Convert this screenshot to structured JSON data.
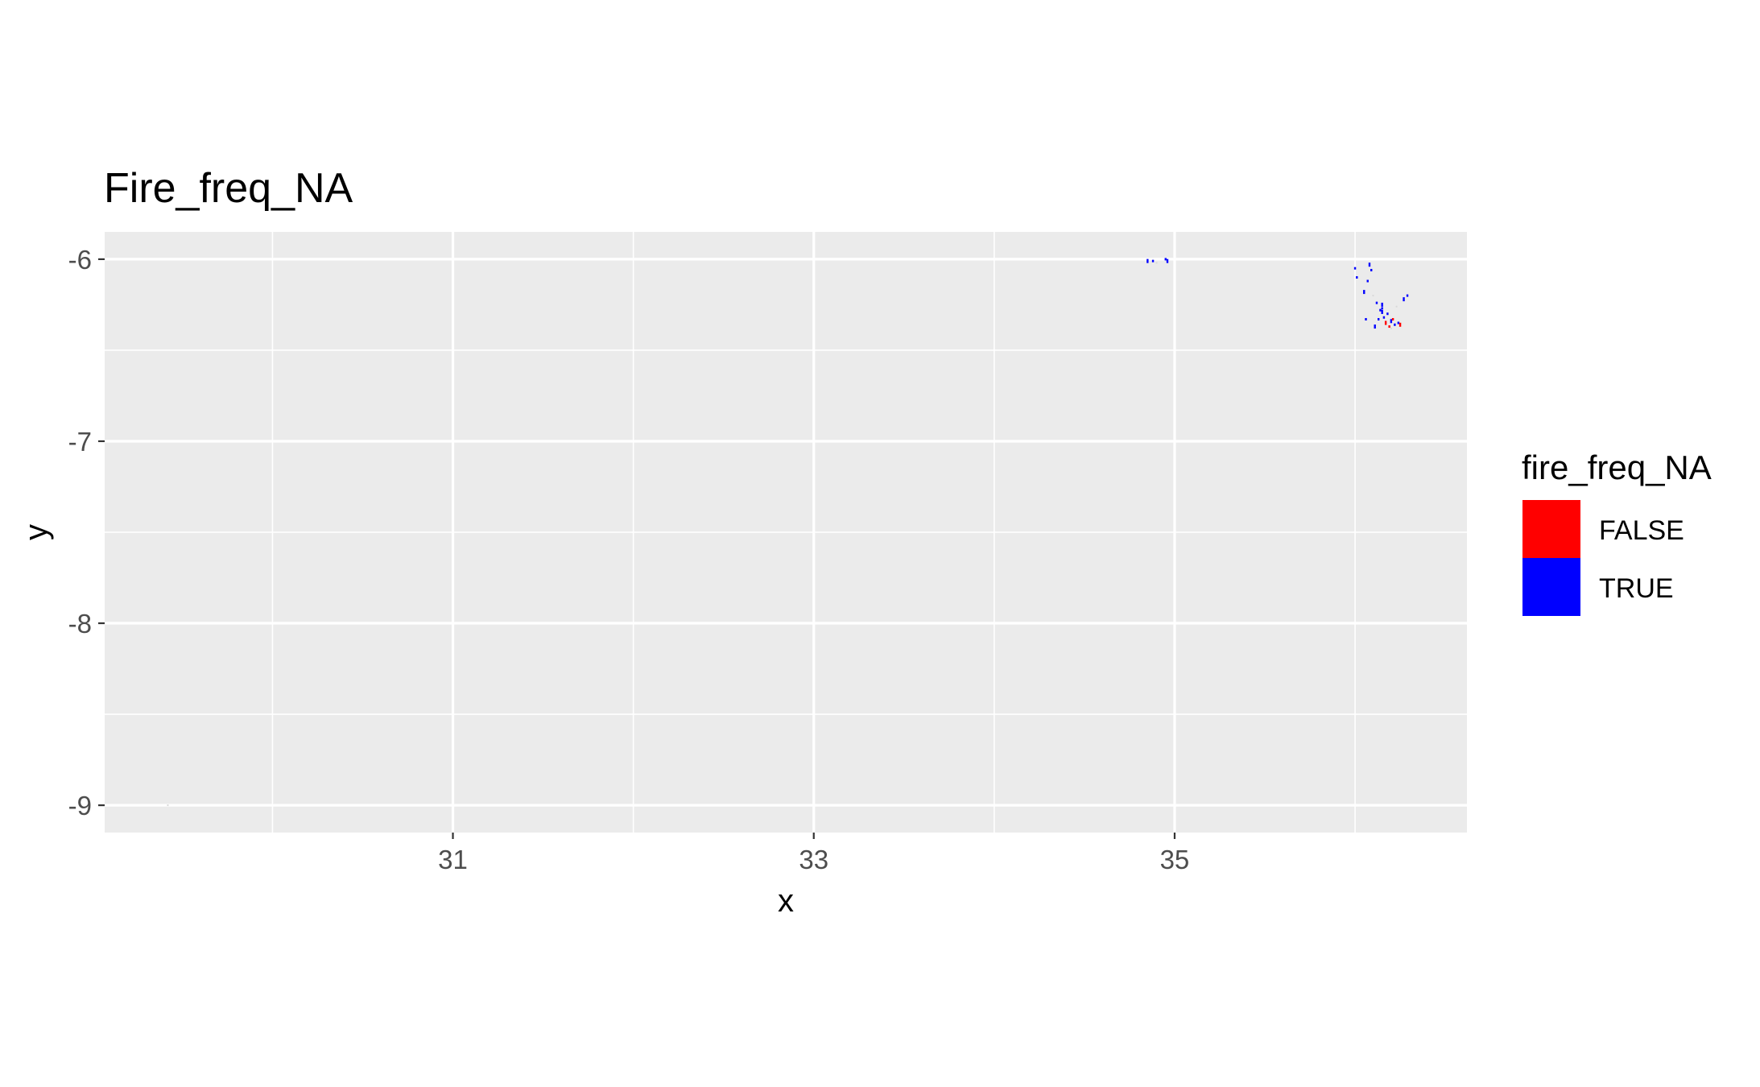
{
  "chart_data": {
    "type": "heatmap",
    "title": "Fire_freq_NA",
    "xlabel": "x",
    "ylabel": "y",
    "xlim": [
      29.07,
      36.62
    ],
    "ylim": [
      -9.15,
      -5.85
    ],
    "x_ticks": [
      31,
      33,
      35
    ],
    "x_tick_labels": [
      "31",
      "33",
      "35"
    ],
    "y_ticks": [
      -6,
      -7,
      -8,
      -9
    ],
    "y_tick_labels": [
      "-6",
      "-7",
      "-8",
      "-9"
    ],
    "x_minor_breaks": [
      30,
      32,
      34,
      36
    ],
    "y_minor_breaks": [
      -6.5,
      -7.5,
      -8.5
    ],
    "grid": true,
    "panel_background": "#ebebeb",
    "legend": {
      "title": "fire_freq_NA",
      "position": "right",
      "entries": [
        {
          "label": "FALSE",
          "color": "#ff0000"
        },
        {
          "label": "TRUE",
          "color": "#0000ff"
        }
      ]
    },
    "series": [
      {
        "name": "TRUE",
        "color": "#0000ff",
        "points": [
          [
            34.85,
            -6.01
          ],
          [
            34.88,
            -6.01
          ],
          [
            34.95,
            -6.0
          ],
          [
            34.96,
            -6.01
          ],
          [
            36.0,
            -6.05
          ],
          [
            36.01,
            -6.1
          ],
          [
            36.08,
            -6.03
          ],
          [
            36.09,
            -6.06
          ],
          [
            36.07,
            -6.12
          ],
          [
            36.15,
            -6.25
          ],
          [
            36.15,
            -6.27
          ],
          [
            36.14,
            -6.28
          ],
          [
            36.15,
            -6.29
          ],
          [
            36.13,
            -6.33
          ],
          [
            36.16,
            -6.32
          ],
          [
            36.2,
            -6.34
          ],
          [
            36.22,
            -6.36
          ],
          [
            36.24,
            -6.35
          ],
          [
            36.27,
            -6.22
          ],
          [
            36.29,
            -6.2
          ],
          [
            36.18,
            -6.3
          ],
          [
            36.11,
            -6.37
          ],
          [
            36.06,
            -6.33
          ],
          [
            36.12,
            -6.24
          ],
          [
            36.05,
            -6.18
          ]
        ]
      },
      {
        "name": "FALSE",
        "color": "#ff0000",
        "points": [
          [
            36.17,
            -6.35
          ],
          [
            36.21,
            -6.33
          ],
          [
            36.19,
            -6.37
          ],
          [
            36.25,
            -6.36
          ]
        ]
      }
    ],
    "background_points": [
      [
        29.42,
        -9.0
      ],
      [
        36.1,
        -6.2
      ],
      [
        36.23,
        -6.26
      ],
      [
        36.2,
        -6.38
      ],
      [
        34.9,
        -6.02
      ]
    ]
  }
}
